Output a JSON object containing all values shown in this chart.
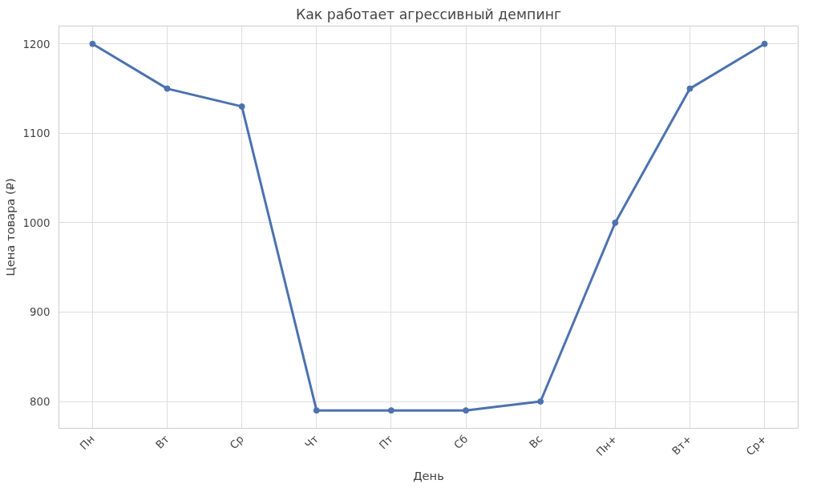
{
  "chart_data": {
    "type": "line",
    "title": "Как работает агрессивный демпинг",
    "xlabel": "День",
    "ylabel": "Цена товара (₽)",
    "categories": [
      "Пн",
      "Вт",
      "Ср",
      "Чт",
      "Пт",
      "Сб",
      "Вс",
      "Пн+",
      "Вт+",
      "Ср+"
    ],
    "series": [
      {
        "color": "#4c72b0",
        "values": [
          1200,
          1150,
          1130,
          790,
          790,
          790,
          800,
          1000,
          1150,
          1200
        ]
      }
    ],
    "ylim": [
      770,
      1220
    ],
    "yticks": [
      800,
      900,
      1000,
      1100,
      1200
    ],
    "grid": true,
    "marker": "circle",
    "line_style": "solid"
  }
}
